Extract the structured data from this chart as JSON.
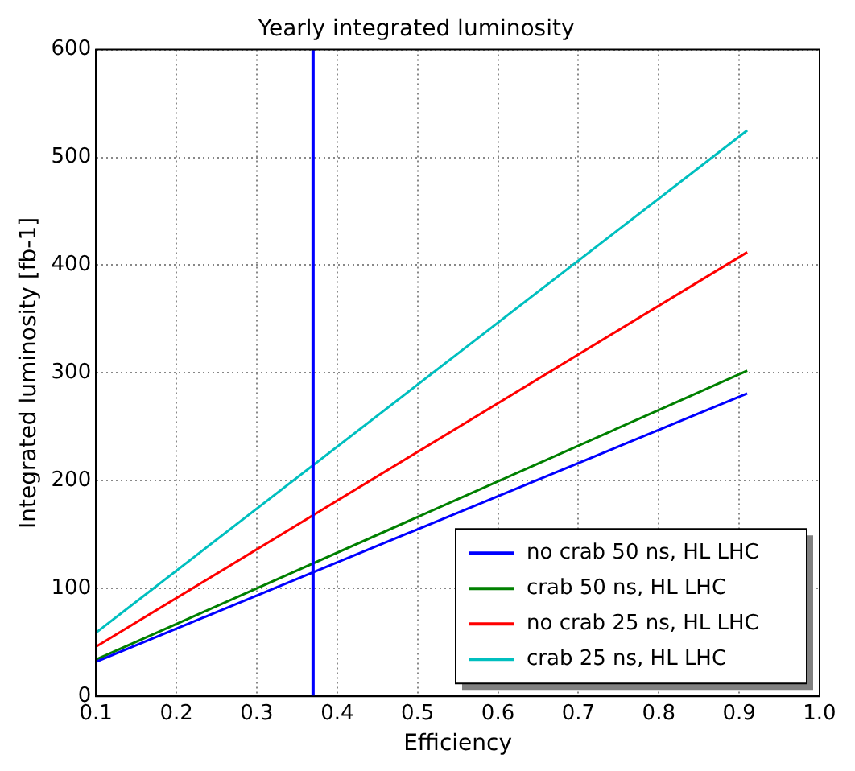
{
  "chart_data": {
    "type": "line",
    "title": "Yearly integrated luminosity",
    "xlabel": "Efficiency",
    "ylabel": "Integrated luminosity [fb-1]",
    "x": [
      0.1,
      0.91
    ],
    "series": [
      {
        "name": "no crab 50 ns, HL LHC",
        "color": "#0000ff",
        "values": [
          32,
          281
        ]
      },
      {
        "name": "crab 50 ns, HL LHC",
        "color": "#008000",
        "values": [
          34,
          302
        ]
      },
      {
        "name": "no crab 25 ns, HL LHC",
        "color": "#ff0000",
        "values": [
          46,
          412
        ]
      },
      {
        "name": "crab 25 ns, HL LHC",
        "color": "#00bfbf",
        "values": [
          59,
          525
        ]
      }
    ],
    "xlim": [
      0.1,
      1.0
    ],
    "xticks": [
      0.1,
      0.2,
      0.3,
      0.4,
      0.5,
      0.6,
      0.7,
      0.8,
      0.9,
      {
        "value": 1.0,
        "label": "1.0"
      }
    ],
    "ylim": [
      0,
      600
    ],
    "yticks": [
      0,
      100,
      200,
      300,
      400,
      500,
      600
    ],
    "ref_lines": [
      {
        "axis": "x",
        "value": 0.37,
        "color": "#0000ff"
      }
    ],
    "grid": true,
    "legend": "bottom right",
    "marker": "none",
    "line_style": "solid"
  }
}
